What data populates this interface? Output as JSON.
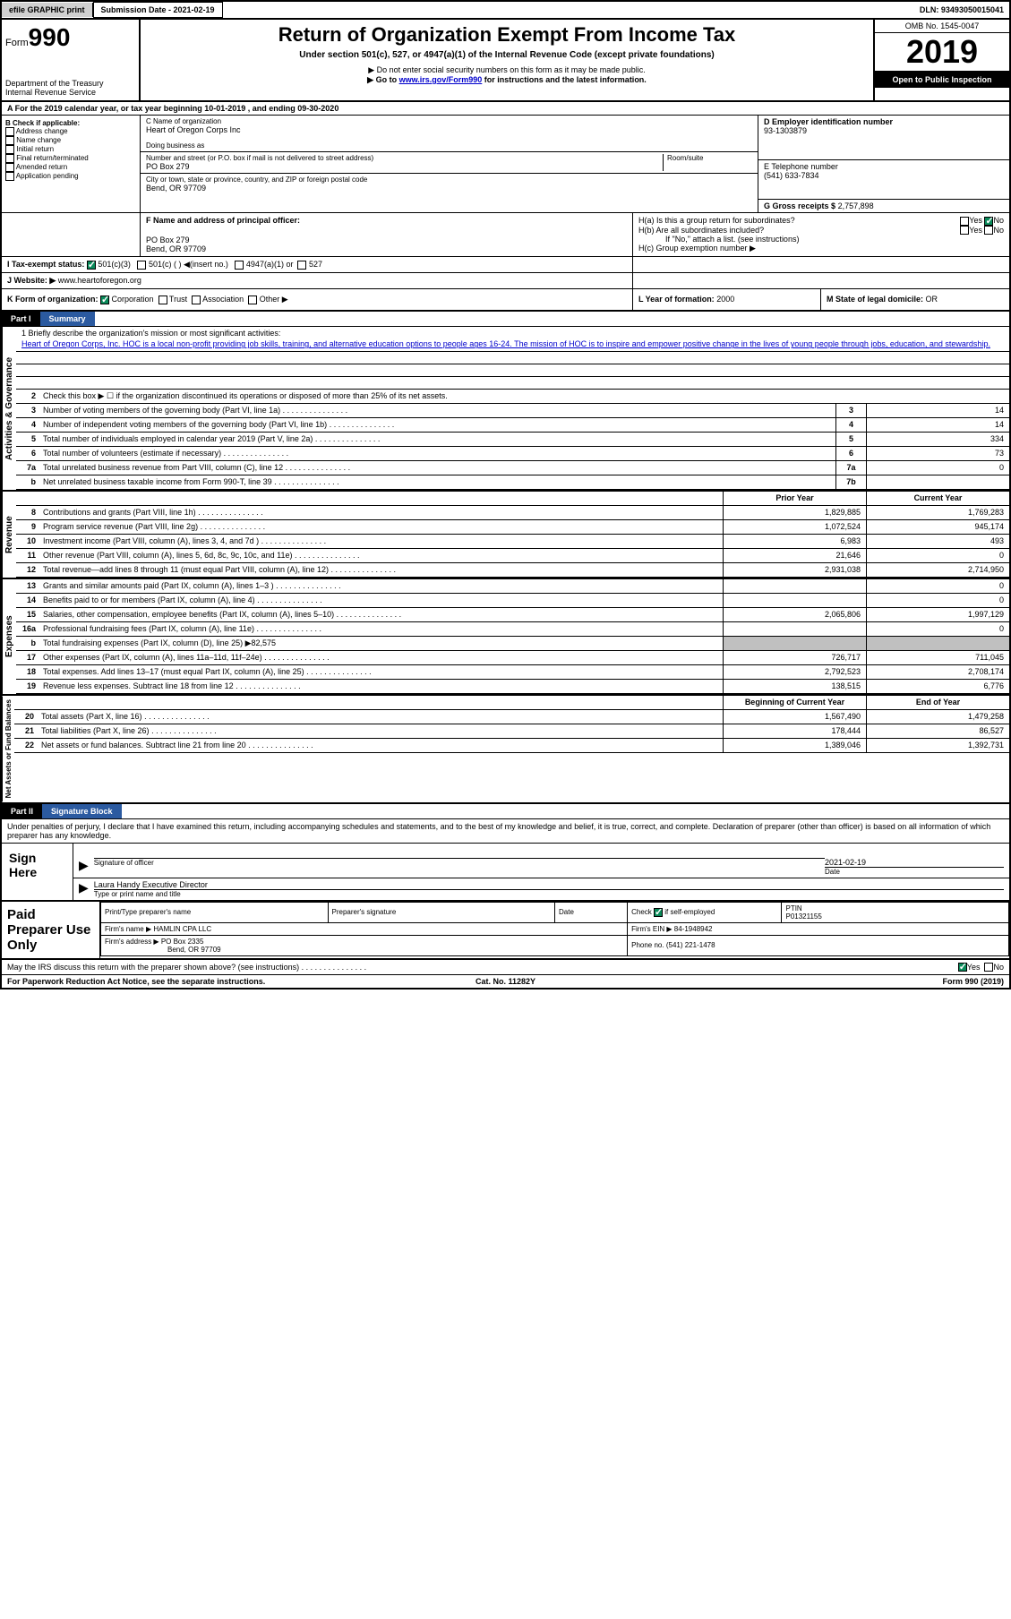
{
  "topbar": {
    "efile": "efile GRAPHIC print",
    "submission_label": "Submission Date - 2021-02-19",
    "dln": "DLN: 93493050015041"
  },
  "header": {
    "form_label": "Form",
    "form_number": "990",
    "dept": "Department of the Treasury",
    "irs": "Internal Revenue Service",
    "title": "Return of Organization Exempt From Income Tax",
    "subtitle": "Under section 501(c), 527, or 4947(a)(1) of the Internal Revenue Code (except private foundations)",
    "note1": "▶ Do not enter social security numbers on this form as it may be made public.",
    "note2_pre": "▶ Go to ",
    "note2_link": "www.irs.gov/Form990",
    "note2_post": " for instructions and the latest information.",
    "omb": "OMB No. 1545-0047",
    "year": "2019",
    "open": "Open to Public Inspection"
  },
  "rowA": "A For the 2019 calendar year, or tax year beginning 10-01-2019  , and ending 09-30-2020",
  "boxB": {
    "label": "B Check if applicable:",
    "items": [
      "Address change",
      "Name change",
      "Initial return",
      "Final return/terminated",
      "Amended return",
      "Application pending"
    ]
  },
  "boxC": {
    "name_label": "C Name of organization",
    "name": "Heart of Oregon Corps Inc",
    "dba_label": "Doing business as",
    "addr_label": "Number and street (or P.O. box if mail is not delivered to street address)",
    "room_label": "Room/suite",
    "addr": "PO Box 279",
    "city_label": "City or town, state or province, country, and ZIP or foreign postal code",
    "city": "Bend, OR  97709"
  },
  "boxD": {
    "label": "D Employer identification number",
    "val": "93-1303879"
  },
  "boxE": {
    "label": "E Telephone number",
    "val": "(541) 633-7834"
  },
  "boxG": {
    "label": "G Gross receipts $",
    "val": "2,757,898"
  },
  "boxF": {
    "label": "F  Name and address of principal officer:",
    "line1": "PO Box 279",
    "line2": "Bend, OR  97709"
  },
  "boxH": {
    "a_label": "H(a)  Is this a group return for subordinates?",
    "b_label": "H(b)  Are all subordinates included?",
    "b_note": "If \"No,\" attach a list. (see instructions)",
    "c_label": "H(c)  Group exemption number ▶"
  },
  "boxI": {
    "label": "I  Tax-exempt status:",
    "opts": [
      "501(c)(3)",
      "501(c) (  ) ◀(insert no.)",
      "4947(a)(1) or",
      "527"
    ]
  },
  "boxJ": {
    "label": "J  Website: ▶",
    "val": "www.heartoforegon.org"
  },
  "boxK": {
    "label": "K Form of organization:",
    "opts": [
      "Corporation",
      "Trust",
      "Association",
      "Other ▶"
    ]
  },
  "boxL": {
    "label": "L Year of formation:",
    "val": "2000"
  },
  "boxM": {
    "label": "M State of legal domicile:",
    "val": "OR"
  },
  "part1": {
    "tag": "Part I",
    "title": "Summary"
  },
  "summary": {
    "line1_label": "1  Briefly describe the organization's mission or most significant activities:",
    "mission": "Heart of Oregon Corps, Inc. HOC is a local non-profit providing job skills, training, and alternative education options to people ages 16-24. The mission of HOC is to inspire and empower positive change in the lives of young people through jobs, education, and stewardship.",
    "line2": "Check this box ▶ ☐ if the organization discontinued its operations or disposed of more than 25% of its net assets.",
    "rows_gov": [
      {
        "n": "3",
        "d": "Number of voting members of the governing body (Part VI, line 1a)",
        "box": "3",
        "v": "14"
      },
      {
        "n": "4",
        "d": "Number of independent voting members of the governing body (Part VI, line 1b)",
        "box": "4",
        "v": "14"
      },
      {
        "n": "5",
        "d": "Total number of individuals employed in calendar year 2019 (Part V, line 2a)",
        "box": "5",
        "v": "334"
      },
      {
        "n": "6",
        "d": "Total number of volunteers (estimate if necessary)",
        "box": "6",
        "v": "73"
      },
      {
        "n": "7a",
        "d": "Total unrelated business revenue from Part VIII, column (C), line 12",
        "box": "7a",
        "v": "0"
      },
      {
        "n": "b",
        "d": "Net unrelated business taxable income from Form 990-T, line 39",
        "box": "7b",
        "v": ""
      }
    ],
    "prior_hdr": "Prior Year",
    "current_hdr": "Current Year",
    "rows_rev": [
      {
        "n": "8",
        "d": "Contributions and grants (Part VIII, line 1h)",
        "p": "1,829,885",
        "c": "1,769,283"
      },
      {
        "n": "9",
        "d": "Program service revenue (Part VIII, line 2g)",
        "p": "1,072,524",
        "c": "945,174"
      },
      {
        "n": "10",
        "d": "Investment income (Part VIII, column (A), lines 3, 4, and 7d )",
        "p": "6,983",
        "c": "493"
      },
      {
        "n": "11",
        "d": "Other revenue (Part VIII, column (A), lines 5, 6d, 8c, 9c, 10c, and 11e)",
        "p": "21,646",
        "c": "0"
      },
      {
        "n": "12",
        "d": "Total revenue—add lines 8 through 11 (must equal Part VIII, column (A), line 12)",
        "p": "2,931,038",
        "c": "2,714,950"
      }
    ],
    "rows_exp": [
      {
        "n": "13",
        "d": "Grants and similar amounts paid (Part IX, column (A), lines 1–3 )",
        "p": "",
        "c": "0"
      },
      {
        "n": "14",
        "d": "Benefits paid to or for members (Part IX, column (A), line 4)",
        "p": "",
        "c": "0"
      },
      {
        "n": "15",
        "d": "Salaries, other compensation, employee benefits (Part IX, column (A), lines 5–10)",
        "p": "2,065,806",
        "c": "1,997,129"
      },
      {
        "n": "16a",
        "d": "Professional fundraising fees (Part IX, column (A), line 11e)",
        "p": "",
        "c": "0"
      },
      {
        "n": "b",
        "d": "Total fundraising expenses (Part IX, column (D), line 25) ▶82,575",
        "gray": true
      },
      {
        "n": "17",
        "d": "Other expenses (Part IX, column (A), lines 11a–11d, 11f–24e)",
        "p": "726,717",
        "c": "711,045"
      },
      {
        "n": "18",
        "d": "Total expenses. Add lines 13–17 (must equal Part IX, column (A), line 25)",
        "p": "2,792,523",
        "c": "2,708,174"
      },
      {
        "n": "19",
        "d": "Revenue less expenses. Subtract line 18 from line 12",
        "p": "138,515",
        "c": "6,776"
      }
    ],
    "net_begin_hdr": "Beginning of Current Year",
    "net_end_hdr": "End of Year",
    "rows_net": [
      {
        "n": "20",
        "d": "Total assets (Part X, line 16)",
        "p": "1,567,490",
        "c": "1,479,258"
      },
      {
        "n": "21",
        "d": "Total liabilities (Part X, line 26)",
        "p": "178,444",
        "c": "86,527"
      },
      {
        "n": "22",
        "d": "Net assets or fund balances. Subtract line 21 from line 20",
        "p": "1,389,046",
        "c": "1,392,731"
      }
    ],
    "vlabels": {
      "gov": "Activities & Governance",
      "rev": "Revenue",
      "exp": "Expenses",
      "net": "Net Assets or Fund Balances"
    }
  },
  "part2": {
    "tag": "Part II",
    "title": "Signature Block"
  },
  "sig": {
    "perjury": "Under penalties of perjury, I declare that I have examined this return, including accompanying schedules and statements, and to the best of my knowledge and belief, it is true, correct, and complete. Declaration of preparer (other than officer) is based on all information of which preparer has any knowledge.",
    "sign_here": "Sign Here",
    "sig_officer_label": "Signature of officer",
    "date_label": "Date",
    "date_val": "2021-02-19",
    "name_title": "Laura Handy  Executive Director",
    "name_title_label": "Type or print name and title"
  },
  "prep": {
    "left": "Paid Preparer Use Only",
    "h1": "Print/Type preparer's name",
    "h2": "Preparer's signature",
    "h3": "Date",
    "h4_a": "Check",
    "h4_b": "if self-employed",
    "h5": "PTIN",
    "ptin": "P01321155",
    "firm_name_label": "Firm's name    ▶",
    "firm_name": "HAMLIN CPA LLC",
    "firm_ein_label": "Firm's EIN ▶",
    "firm_ein": "84-1948942",
    "firm_addr_label": "Firm's address ▶",
    "firm_addr1": "PO Box 2335",
    "firm_addr2": "Bend, OR  97709",
    "phone_label": "Phone no.",
    "phone": "(541) 221-1478"
  },
  "discuss": "May the IRS discuss this return with the preparer shown above? (see instructions)",
  "footer": {
    "left": "For Paperwork Reduction Act Notice, see the separate instructions.",
    "mid": "Cat. No. 11282Y",
    "right": "Form 990 (2019)"
  }
}
